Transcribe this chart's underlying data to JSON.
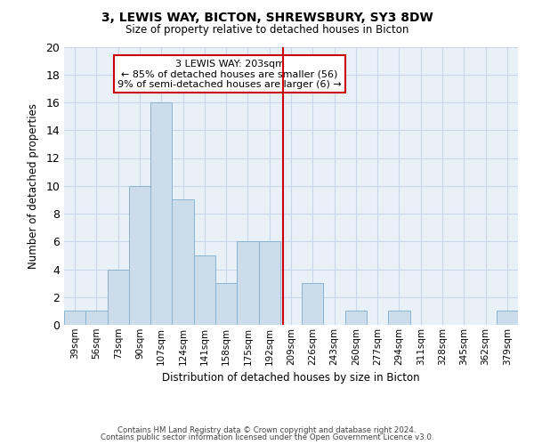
{
  "title": "3, LEWIS WAY, BICTON, SHREWSBURY, SY3 8DW",
  "subtitle": "Size of property relative to detached houses in Bicton",
  "xlabel": "Distribution of detached houses by size in Bicton",
  "ylabel": "Number of detached properties",
  "bin_labels": [
    "39sqm",
    "56sqm",
    "73sqm",
    "90sqm",
    "107sqm",
    "124sqm",
    "141sqm",
    "158sqm",
    "175sqm",
    "192sqm",
    "209sqm",
    "226sqm",
    "243sqm",
    "260sqm",
    "277sqm",
    "294sqm",
    "311sqm",
    "328sqm",
    "345sqm",
    "362sqm",
    "379sqm"
  ],
  "bar_heights": [
    1,
    1,
    4,
    10,
    16,
    9,
    5,
    3,
    6,
    6,
    0,
    3,
    0,
    1,
    0,
    1,
    0,
    0,
    0,
    0,
    1
  ],
  "bar_color": "#cddceb",
  "bar_edge_color": "#8ab4d0",
  "subject_line_color": "#cc0000",
  "annotation_text": "3 LEWIS WAY: 203sqm\n← 85% of detached houses are smaller (56)\n9% of semi-detached houses are larger (6) →",
  "annotation_box_edge_color": "#cc0000",
  "annotation_box_face_color": "#ffffff",
  "ylim": [
    0,
    20
  ],
  "yticks": [
    0,
    2,
    4,
    6,
    8,
    10,
    12,
    14,
    16,
    18,
    20
  ],
  "footer_line1": "Contains HM Land Registry data © Crown copyright and database right 2024.",
  "footer_line2": "Contains public sector information licensed under the Open Government Licence v3.0.",
  "background_color": "#ffffff",
  "grid_color": "#c8d8e8",
  "plot_bg_color": "#e8f0f8"
}
